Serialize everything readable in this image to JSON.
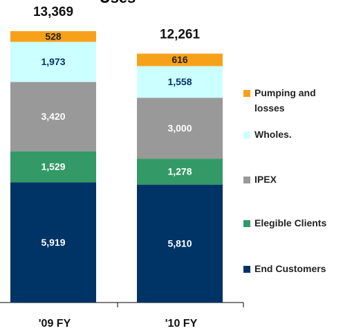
{
  "chart_data": {
    "type": "stacked_bar",
    "title": "Uses",
    "categories": [
      "'09 FY",
      "'10 FY"
    ],
    "series": [
      {
        "name": "End Customers",
        "color": "#003366",
        "label_color": "#ffffff",
        "values": [
          5919,
          5810
        ],
        "value_labels": [
          "5,919",
          "5,810"
        ]
      },
      {
        "name": "Elegible Clients",
        "color": "#339966",
        "label_color": "#ffffff",
        "values": [
          1529,
          1278
        ],
        "value_labels": [
          "1,529",
          "1,278"
        ]
      },
      {
        "name": "IPEX",
        "color": "#999999",
        "label_color": "#ffffff",
        "values": [
          3420,
          3000
        ],
        "value_labels": [
          "3,420",
          "3,000"
        ]
      },
      {
        "name": "Wholes.",
        "color": "#ccffff",
        "label_color": "#003366",
        "values": [
          1973,
          1558
        ],
        "value_labels": [
          "1,973",
          "1,558"
        ]
      },
      {
        "name": "Pumping and losses",
        "color": "#f7a11a",
        "label_color": "#222222",
        "values": [
          528,
          616
        ],
        "value_labels": [
          "528",
          "616"
        ]
      }
    ],
    "totals": [
      13369,
      12261
    ],
    "total_labels": [
      "13,369",
      "12,261"
    ]
  }
}
